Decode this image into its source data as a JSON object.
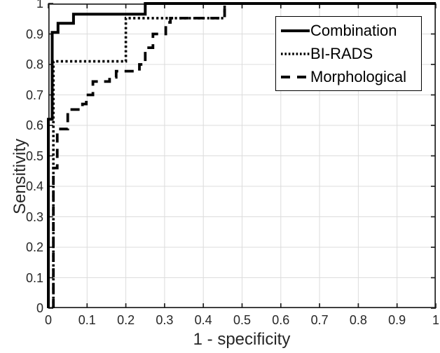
{
  "figure": {
    "background_color": "#ffffff",
    "curve_color": "#000000",
    "grid_color": "#dcdcdc",
    "axis_color": "#1f1f1f",
    "label_color": "#262626"
  },
  "chart_data": {
    "type": "line",
    "subtype": "roc-step-curves",
    "title": "",
    "xlabel": "1 - specificity",
    "ylabel": "Sensitivity",
    "xlim": [
      0,
      1
    ],
    "ylim": [
      0,
      1
    ],
    "grid": true,
    "xticks": [
      0,
      0.1,
      0.2,
      0.3,
      0.4,
      0.5,
      0.6,
      0.7,
      0.8,
      0.9,
      1
    ],
    "xtick_labels": [
      "0",
      "0.1",
      "0.2",
      "0.3",
      "0.4",
      "0.5",
      "0.6",
      "0.7",
      "0.8",
      "0.9",
      "1"
    ],
    "yticks": [
      0,
      0.1,
      0.2,
      0.3,
      0.4,
      0.5,
      0.6,
      0.7,
      0.8,
      0.9,
      1
    ],
    "ytick_labels": [
      "0",
      "0.1",
      "0.2",
      "0.3",
      "0.4",
      "0.5",
      "0.6",
      "0.7",
      "0.8",
      "0.9",
      "1"
    ],
    "legend": {
      "position": "top-right",
      "border": true
    },
    "series": [
      {
        "name": "Morphological",
        "line_style": "dashed",
        "points": [
          [
            0.013,
            0
          ],
          [
            0.013,
            0.46
          ],
          [
            0.023,
            0.46
          ],
          [
            0.023,
            0.588
          ],
          [
            0.05,
            0.588
          ],
          [
            0.05,
            0.652
          ],
          [
            0.088,
            0.652
          ],
          [
            0.088,
            0.67
          ],
          [
            0.098,
            0.67
          ],
          [
            0.098,
            0.7
          ],
          [
            0.115,
            0.7
          ],
          [
            0.115,
            0.744
          ],
          [
            0.158,
            0.744
          ],
          [
            0.158,
            0.758
          ],
          [
            0.175,
            0.758
          ],
          [
            0.175,
            0.778
          ],
          [
            0.235,
            0.778
          ],
          [
            0.235,
            0.8
          ],
          [
            0.25,
            0.8
          ],
          [
            0.25,
            0.855
          ],
          [
            0.27,
            0.855
          ],
          [
            0.27,
            0.9
          ],
          [
            0.303,
            0.9
          ],
          [
            0.303,
            0.938
          ],
          [
            0.315,
            0.938
          ],
          [
            0.315,
            0.952
          ],
          [
            0.455,
            0.952
          ],
          [
            0.455,
            1
          ],
          [
            1,
            1
          ]
        ]
      },
      {
        "name": "BI-RADS",
        "line_style": "dotted",
        "points": [
          [
            0.013,
            0
          ],
          [
            0.013,
            0.81
          ],
          [
            0.2,
            0.81
          ],
          [
            0.2,
            0.952
          ],
          [
            0.455,
            0.952
          ],
          [
            0.455,
            1
          ],
          [
            1,
            1
          ]
        ]
      },
      {
        "name": "Combination",
        "line_style": "solid",
        "points": [
          [
            0,
            0
          ],
          [
            0,
            0.62
          ],
          [
            0.01,
            0.62
          ],
          [
            0.01,
            0.905
          ],
          [
            0.025,
            0.905
          ],
          [
            0.025,
            0.935
          ],
          [
            0.065,
            0.935
          ],
          [
            0.065,
            0.965
          ],
          [
            0.25,
            0.965
          ],
          [
            0.25,
            1
          ],
          [
            1,
            1
          ]
        ]
      }
    ],
    "legend_order": [
      "Combination",
      "BI-RADS",
      "Morphological"
    ]
  }
}
